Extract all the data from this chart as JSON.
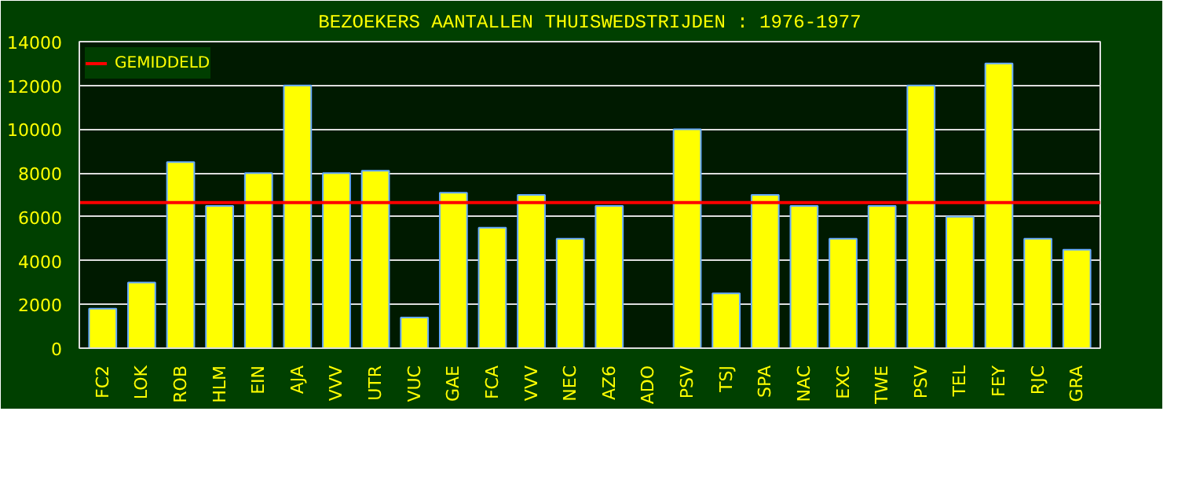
{
  "chart_data": {
    "type": "bar",
    "title": "BEZOEKERS AANTALLEN THUISWEDSTRIJDEN : 1976-1977",
    "categories": [
      "FC2",
      "LOK",
      "ROB",
      "HLM",
      "EIN",
      "AJA",
      "VVV",
      "UTR",
      "VUC",
      "GAE",
      "FCA",
      "VVV",
      "NEC",
      "AZ6",
      "ADO",
      "PSV",
      "TSJ",
      "SPA",
      "NAC",
      "EXC",
      "TWE",
      "PSV",
      "TEL",
      "FEY",
      "RJC",
      "GRA"
    ],
    "values": [
      1800,
      3000,
      8500,
      6500,
      8000,
      12000,
      8000,
      8100,
      1400,
      7100,
      5500,
      7000,
      5000,
      6500,
      null,
      10000,
      2500,
      7000,
      6500,
      5000,
      6500,
      12000,
      6000,
      13000,
      5000,
      4500
    ],
    "color": "#ffff00",
    "ylim": [
      0,
      14000
    ],
    "yticks": [
      0,
      2000,
      4000,
      6000,
      8000,
      10000,
      12000,
      14000
    ],
    "grid": "y",
    "legend": "top left",
    "ref_lines": [
      {
        "axis": "y",
        "value": 6650,
        "label": "GEMIDDELD",
        "color": "#ff0000"
      }
    ]
  }
}
